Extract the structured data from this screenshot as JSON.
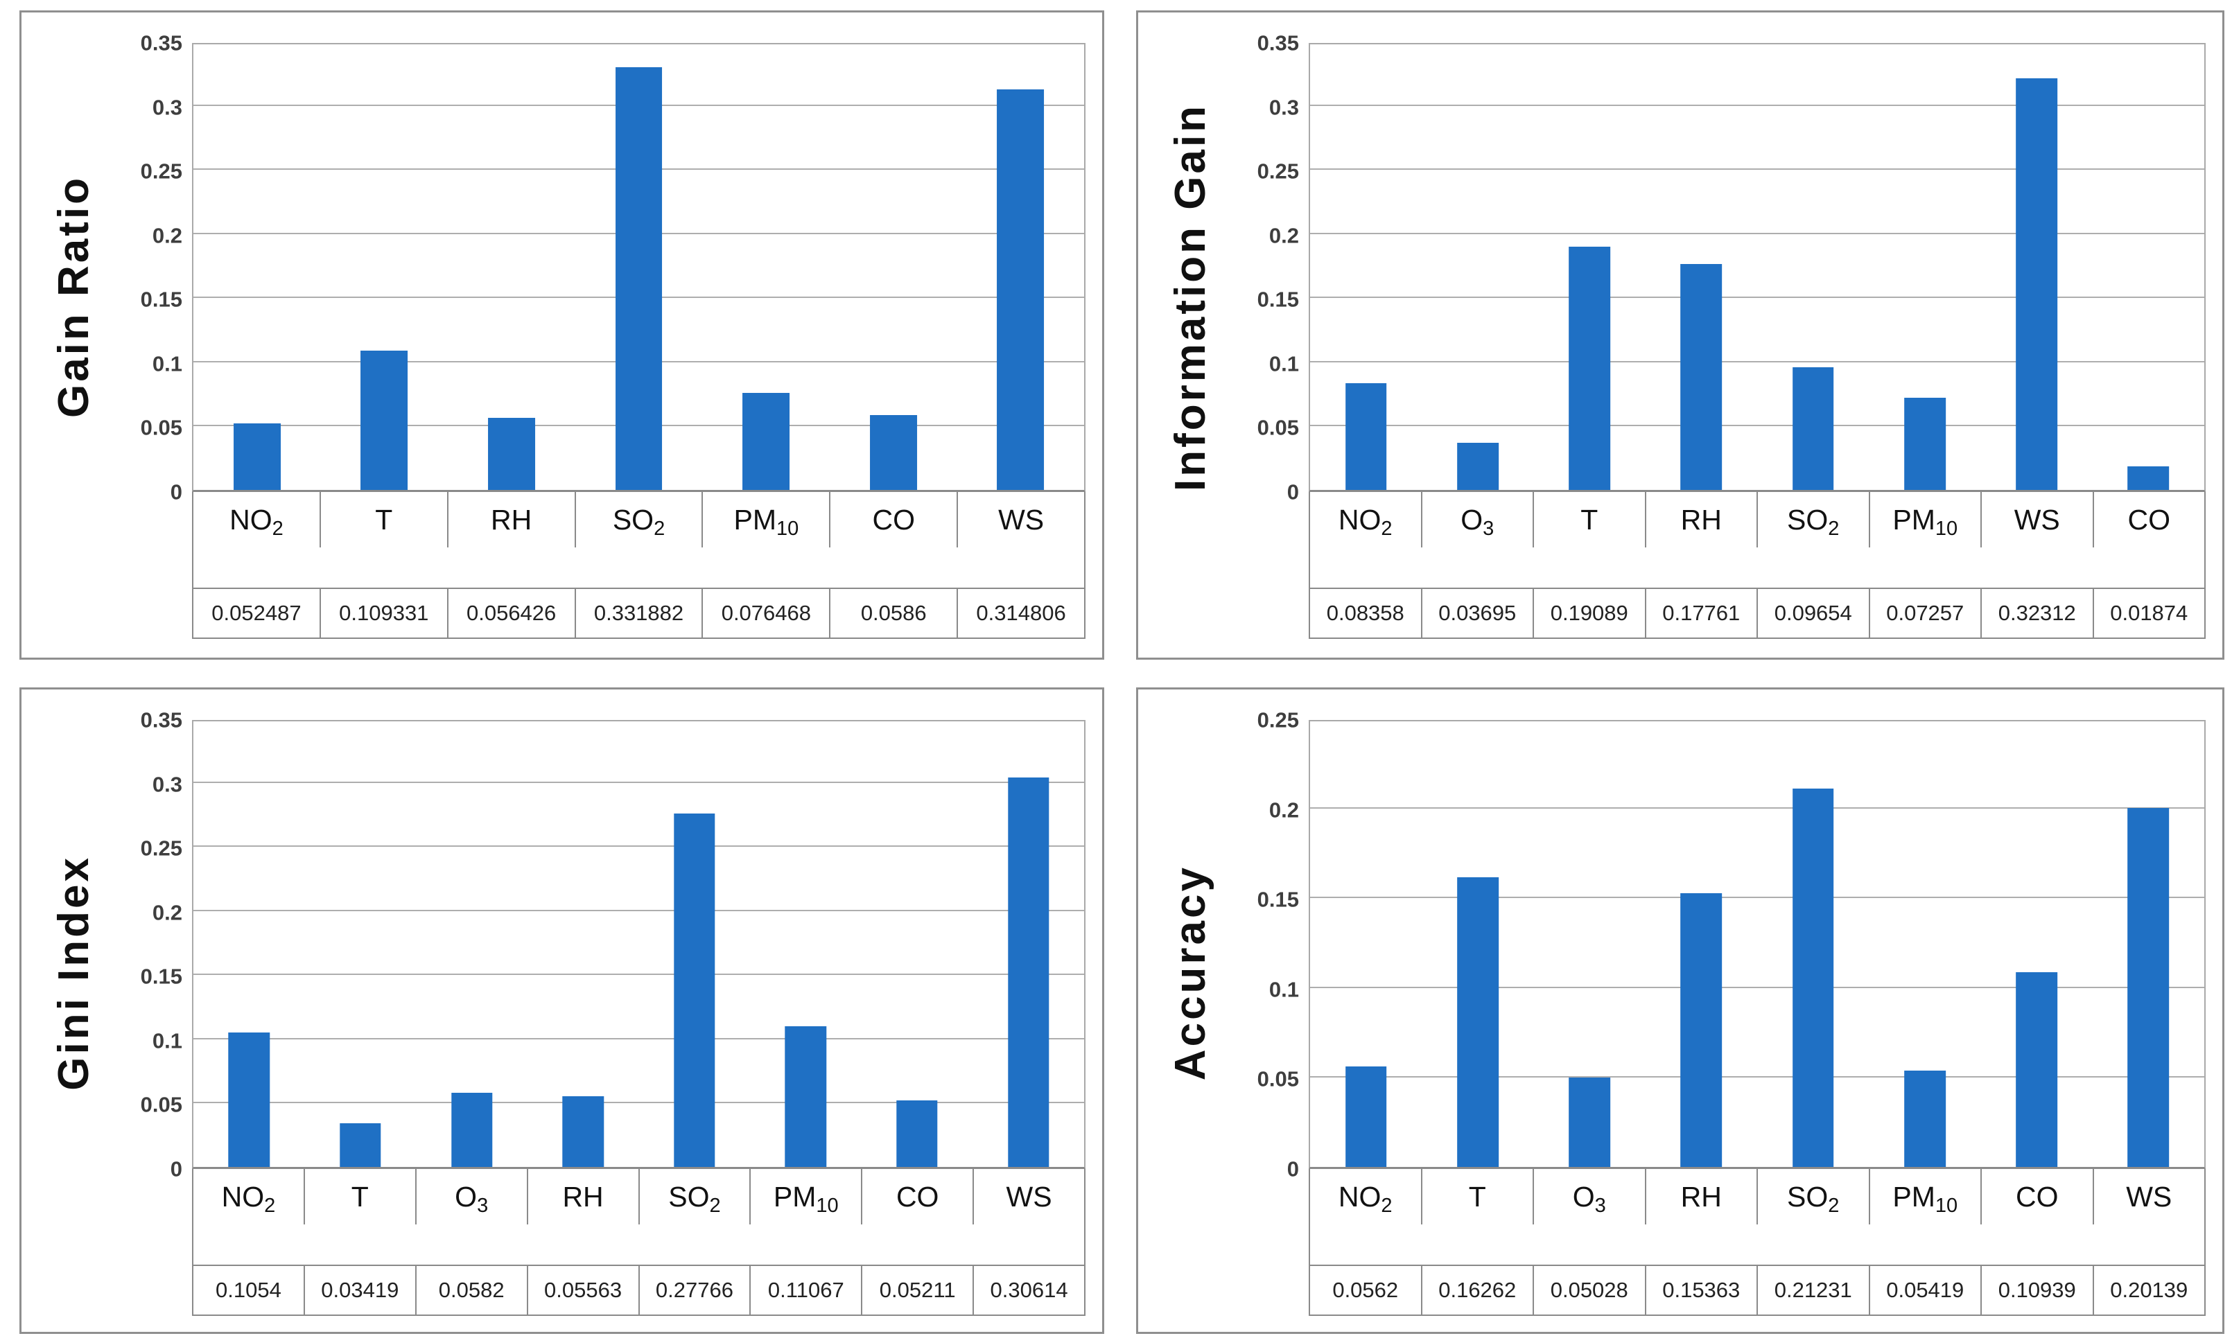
{
  "style": {
    "bar_color": "#1F70C4",
    "grid_color": "#AEAEAE",
    "plot_border_color": "#A9A9A9",
    "table_border_color": "#8A8A8A",
    "tick_label_color": "#3E3E3E",
    "axis_title_color": "#101010",
    "background": "#FFFFFF"
  },
  "chart_data": [
    {
      "type": "bar",
      "ylabel": "Gain Ratio",
      "ylim": [
        0,
        0.35
      ],
      "tick_step": 0.05,
      "yticks": [
        "0",
        "0.05",
        "0.1",
        "0.15",
        "0.2",
        "0.25",
        "0.3",
        "0.35"
      ],
      "grid": true,
      "legend": "none",
      "categories": [
        {
          "base": "NO",
          "sub": "2"
        },
        {
          "base": "T",
          "sub": ""
        },
        {
          "base": "RH",
          "sub": ""
        },
        {
          "base": "SO",
          "sub": "2"
        },
        {
          "base": "PM",
          "sub": "10"
        },
        {
          "base": "CO",
          "sub": ""
        },
        {
          "base": "WS",
          "sub": ""
        }
      ],
      "values": [
        0.052487,
        0.109331,
        0.056426,
        0.331882,
        0.076468,
        0.0586,
        0.314806
      ],
      "value_labels": [
        "0.052487",
        "0.109331",
        "0.056426",
        "0.331882",
        "0.076468",
        "0.0586",
        "0.314806"
      ]
    },
    {
      "type": "bar",
      "ylabel": "Information Gain",
      "ylim": [
        0,
        0.35
      ],
      "tick_step": 0.05,
      "yticks": [
        "0",
        "0.05",
        "0.1",
        "0.15",
        "0.2",
        "0.25",
        "0.3",
        "0.35"
      ],
      "grid": true,
      "legend": "none",
      "categories": [
        {
          "base": "NO",
          "sub": "2"
        },
        {
          "base": "O",
          "sub": "3"
        },
        {
          "base": "T",
          "sub": ""
        },
        {
          "base": "RH",
          "sub": ""
        },
        {
          "base": "SO",
          "sub": "2"
        },
        {
          "base": "PM",
          "sub": "10"
        },
        {
          "base": "WS",
          "sub": ""
        },
        {
          "base": "CO",
          "sub": ""
        }
      ],
      "values": [
        0.08358,
        0.03695,
        0.19089,
        0.17761,
        0.09654,
        0.07257,
        0.32312,
        0.01874
      ],
      "value_labels": [
        "0.08358",
        "0.03695",
        "0.19089",
        "0.17761",
        "0.09654",
        "0.07257",
        "0.32312",
        "0.01874"
      ]
    },
    {
      "type": "bar",
      "ylabel": "Gini Index",
      "ylim": [
        0,
        0.35
      ],
      "tick_step": 0.05,
      "yticks": [
        "0",
        "0.05",
        "0.1",
        "0.15",
        "0.2",
        "0.25",
        "0.3",
        "0.35"
      ],
      "grid": true,
      "legend": "none",
      "categories": [
        {
          "base": "NO",
          "sub": "2"
        },
        {
          "base": "T",
          "sub": ""
        },
        {
          "base": "O",
          "sub": "3"
        },
        {
          "base": "RH",
          "sub": ""
        },
        {
          "base": "SO",
          "sub": "2"
        },
        {
          "base": "PM",
          "sub": "10"
        },
        {
          "base": "CO",
          "sub": ""
        },
        {
          "base": "WS",
          "sub": ""
        }
      ],
      "values": [
        0.1054,
        0.03419,
        0.0582,
        0.05563,
        0.27766,
        0.11067,
        0.05211,
        0.30614
      ],
      "value_labels": [
        "0.1054",
        "0.03419",
        "0.0582",
        "0.05563",
        "0.27766",
        "0.11067",
        "0.05211",
        "0.30614"
      ]
    },
    {
      "type": "bar",
      "ylabel": "Accuracy",
      "ylim": [
        0,
        0.25
      ],
      "tick_step": 0.05,
      "yticks": [
        "0",
        "0.05",
        "0.1",
        "0.15",
        "0.2",
        "0.25"
      ],
      "grid": true,
      "legend": "none",
      "categories": [
        {
          "base": "NO",
          "sub": "2"
        },
        {
          "base": "T",
          "sub": ""
        },
        {
          "base": "O",
          "sub": "3"
        },
        {
          "base": "RH",
          "sub": ""
        },
        {
          "base": "SO",
          "sub": "2"
        },
        {
          "base": "PM",
          "sub": "10"
        },
        {
          "base": "CO",
          "sub": ""
        },
        {
          "base": "WS",
          "sub": ""
        }
      ],
      "values": [
        0.0562,
        0.16262,
        0.05028,
        0.15363,
        0.21231,
        0.05419,
        0.10939,
        0.20139
      ],
      "value_labels": [
        "0.0562",
        "0.16262",
        "0.05028",
        "0.15363",
        "0.21231",
        "0.05419",
        "0.10939",
        "0.20139"
      ]
    }
  ]
}
